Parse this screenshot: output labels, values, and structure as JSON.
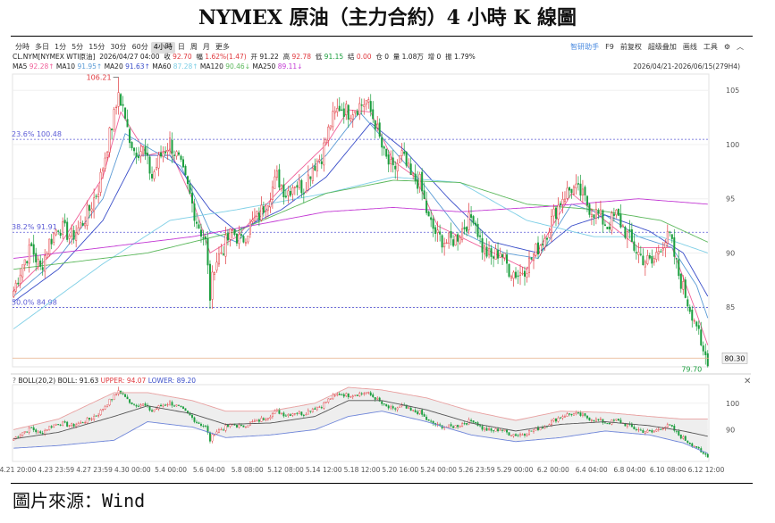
{
  "title": "NYMEX 原油（主力合約）4 小時 K 線圖",
  "source": "圖片來源：Wind",
  "toolbar": {
    "tabs": [
      "分時",
      "多日",
      "1分",
      "5分",
      "15分",
      "30分",
      "60分",
      "4小時",
      "日",
      "周",
      "月",
      "更多"
    ],
    "active_index": 7,
    "right_link": "智研助手",
    "right_items": [
      "F9",
      "前复权",
      "超级叠加",
      "画线",
      "工具"
    ],
    "gear_icon": "gear-icon",
    "collapse_icon": "chevron-up-icon"
  },
  "ohlc_row": {
    "symbol": "CL.NYM[NYMEX WTI原油]",
    "datetime": "2026/04/27 04:00",
    "close_label": "收",
    "close": "92.70",
    "change_label": "幅",
    "change": "1.62%(1.47)",
    "open_label": "开",
    "open": "91.22",
    "high_label": "高",
    "high": "92.78",
    "low_label": "低",
    "low": "91.15",
    "settle_label": "结",
    "settle": "0.00",
    "oi_label": "仓",
    "oi": "0",
    "volume_label": "量",
    "volume": "1.08万",
    "oi_change_label": "增",
    "oi_change": "0",
    "amplitude_label": "振",
    "amplitude": "1.79%"
  },
  "ma_row": [
    {
      "label": "MA5",
      "value": "92.28↑",
      "color": "#f0609a"
    },
    {
      "label": "MA10",
      "value": "91.95↑",
      "color": "#5b9bd5"
    },
    {
      "label": "MA20",
      "value": "91.63↑",
      "color": "#3a4ec9"
    },
    {
      "label": "MA60",
      "value": "87.28↑",
      "color": "#7ecfe6"
    },
    {
      "label": "MA120",
      "value": "90.46↓",
      "color": "#5cb85c"
    },
    {
      "label": "MA250",
      "value": "89.11↓",
      "color": "#c33ad4"
    }
  ],
  "date_range": "2026/04/21-2026/06/15(279H4)",
  "boll": {
    "label": "BOLL(20,2)",
    "mid_label": "BOLL:",
    "mid": "91.63",
    "upper_label": "UPPER:",
    "upper": "94.07",
    "lower_label": "LOWER:",
    "lower": "89.20",
    "help_icon": "question-icon",
    "close_icon": "close-icon"
  },
  "colors": {
    "up": "#e0393e",
    "down": "#1b9e3e",
    "fib": "#5b5bd6",
    "last_price_box": "#f2f2f2"
  },
  "chart_data": [
    {
      "type": "candlestick",
      "title": "",
      "ylim": [
        79.5,
        106.5
      ],
      "y_ticks": [
        85,
        90,
        95,
        100,
        105
      ],
      "x_ticks": [
        "4.21 20:00",
        "4.23 23:59",
        "4.27 23:59",
        "4.30 00:00",
        "5.4 00:00",
        "5.6 04:00",
        "5.8 08:00",
        "5.12 08:00",
        "5.14 12:00",
        "5.18 12:00",
        "5.20 16:00",
        "5.24 00:00",
        "5.26 23:59",
        "5.29 00:00",
        "6.2 00:00",
        "6.4 04:00",
        "6.8 04:00",
        "6.10 08:00",
        "6.12 12:00"
      ],
      "high_marker": {
        "label": "106.21",
        "value": 106.21
      },
      "low_marker": {
        "label": "79.70",
        "value": 79.7
      },
      "last_price": "80.30",
      "fib_levels": [
        {
          "label": "23.6%  100.48",
          "value": 100.48
        },
        {
          "label": "38.2%  91.91",
          "value": 91.91
        },
        {
          "label": "50.0%  84.98",
          "value": 84.98
        }
      ],
      "anchors": [
        [
          0,
          86.5
        ],
        [
          4,
          89
        ],
        [
          8,
          90.5
        ],
        [
          12,
          88.5
        ],
        [
          16,
          91
        ],
        [
          20,
          92.5
        ],
        [
          26,
          91.5
        ],
        [
          30,
          92.5
        ],
        [
          34,
          94
        ],
        [
          38,
          96
        ],
        [
          42,
          100
        ],
        [
          46,
          103.5
        ],
        [
          48,
          105.5
        ],
        [
          50,
          102
        ],
        [
          54,
          99.5
        ],
        [
          58,
          99.5
        ],
        [
          62,
          97
        ],
        [
          66,
          99
        ],
        [
          70,
          100.2
        ],
        [
          74,
          98.5
        ],
        [
          78,
          96
        ],
        [
          82,
          93
        ],
        [
          86,
          91
        ],
        [
          88,
          86
        ],
        [
          90,
          89
        ],
        [
          94,
          90.5
        ],
        [
          98,
          92
        ],
        [
          102,
          91
        ],
        [
          106,
          92.5
        ],
        [
          110,
          93.5
        ],
        [
          114,
          95
        ],
        [
          118,
          97
        ],
        [
          122,
          95.5
        ],
        [
          126,
          96.5
        ],
        [
          130,
          96
        ],
        [
          134,
          98
        ],
        [
          138,
          99
        ],
        [
          142,
          102
        ],
        [
          146,
          103.5
        ],
        [
          150,
          103
        ],
        [
          154,
          103.5
        ],
        [
          158,
          104
        ],
        [
          162,
          102
        ],
        [
          166,
          99
        ],
        [
          170,
          97.5
        ],
        [
          174,
          99
        ],
        [
          178,
          97
        ],
        [
          182,
          96.5
        ],
        [
          186,
          93
        ],
        [
          190,
          91.5
        ],
        [
          194,
          91
        ],
        [
          198,
          91.3
        ],
        [
          202,
          92.5
        ],
        [
          206,
          93.5
        ],
        [
          210,
          90.5
        ],
        [
          214,
          89.5
        ],
        [
          218,
          90.2
        ],
        [
          222,
          88.5
        ],
        [
          226,
          88
        ],
        [
          230,
          88.8
        ],
        [
          234,
          90.2
        ],
        [
          238,
          91.5
        ],
        [
          242,
          93.5
        ],
        [
          246,
          95.2
        ],
        [
          250,
          96
        ],
        [
          254,
          95.5
        ],
        [
          258,
          94.2
        ],
        [
          262,
          93.5
        ],
        [
          266,
          92.5
        ],
        [
          270,
          93.5
        ],
        [
          274,
          92
        ],
        [
          278,
          90.5
        ],
        [
          282,
          89.5
        ],
        [
          286,
          89
        ],
        [
          290,
          90.8
        ],
        [
          294,
          91.5
        ],
        [
          298,
          88
        ],
        [
          302,
          85.5
        ],
        [
          306,
          83.5
        ],
        [
          308,
          81
        ],
        [
          311,
          80.3
        ]
      ],
      "series": [
        {
          "name": "MA5",
          "values": [
            [
              0,
              86.5
            ],
            [
              20,
              90.5
            ],
            [
              40,
              97
            ],
            [
              48,
              103
            ],
            [
              60,
              99
            ],
            [
              70,
              99.5
            ],
            [
              80,
              95
            ],
            [
              88,
              90
            ],
            [
              100,
              91.5
            ],
            [
              120,
              96
            ],
            [
              140,
              100
            ],
            [
              150,
              103.2
            ],
            [
              160,
              103
            ],
            [
              170,
              98.5
            ],
            [
              180,
              97
            ],
            [
              190,
              92.5
            ],
            [
              200,
              91.5
            ],
            [
              215,
              90
            ],
            [
              230,
              88.5
            ],
            [
              250,
              95.5
            ],
            [
              265,
              93
            ],
            [
              280,
              90.5
            ],
            [
              295,
              90.5
            ],
            [
              305,
              85
            ],
            [
              311,
              81.5
            ]
          ]
        },
        {
          "name": "MA10",
          "values": [
            [
              0,
              86
            ],
            [
              20,
              89.5
            ],
            [
              40,
              95
            ],
            [
              50,
              101
            ],
            [
              62,
              99.5
            ],
            [
              75,
              98
            ],
            [
              88,
              92
            ],
            [
              100,
              91
            ],
            [
              120,
              95.5
            ],
            [
              140,
              99
            ],
            [
              155,
              103
            ],
            [
              168,
              100
            ],
            [
              185,
              96
            ],
            [
              200,
              92
            ],
            [
              220,
              90
            ],
            [
              235,
              89.5
            ],
            [
              250,
              94.5
            ],
            [
              265,
              93.5
            ],
            [
              280,
              91.5
            ],
            [
              295,
              90.5
            ],
            [
              306,
              87
            ],
            [
              311,
              84
            ]
          ]
        },
        {
          "name": "MA20",
          "values": [
            [
              0,
              85.5
            ],
            [
              20,
              88.5
            ],
            [
              40,
              93
            ],
            [
              55,
              99
            ],
            [
              70,
              99
            ],
            [
              88,
              94
            ],
            [
              100,
              92
            ],
            [
              120,
              94
            ],
            [
              140,
              97
            ],
            [
              160,
              102
            ],
            [
              175,
              99.5
            ],
            [
              195,
              95
            ],
            [
              215,
              91
            ],
            [
              235,
              90
            ],
            [
              250,
              92.5
            ],
            [
              265,
              93.5
            ],
            [
              285,
              92
            ],
            [
              300,
              90
            ],
            [
              311,
              86
            ]
          ]
        },
        {
          "name": "MA60",
          "values": [
            [
              0,
              83
            ],
            [
              40,
              89
            ],
            [
              70,
              93
            ],
            [
              100,
              94
            ],
            [
              140,
              95.5
            ],
            [
              170,
              97
            ],
            [
              200,
              96.5
            ],
            [
              230,
              93
            ],
            [
              260,
              91.5
            ],
            [
              290,
              91.5
            ],
            [
              311,
              90
            ]
          ]
        },
        {
          "name": "MA120",
          "values": [
            [
              0,
              88.5
            ],
            [
              60,
              90
            ],
            [
              100,
              92
            ],
            [
              140,
              95.5
            ],
            [
              170,
              96.7
            ],
            [
              200,
              96.5
            ],
            [
              230,
              94.5
            ],
            [
              260,
              94
            ],
            [
              290,
              93
            ],
            [
              311,
              91
            ]
          ]
        },
        {
          "name": "MA250",
          "values": [
            [
              0,
              89.5
            ],
            [
              80,
              91.5
            ],
            [
              140,
              93.8
            ],
            [
              170,
              94.2
            ],
            [
              200,
              93.8
            ],
            [
              240,
              94.3
            ],
            [
              280,
              95
            ],
            [
              311,
              94.5
            ]
          ]
        }
      ]
    },
    {
      "type": "line",
      "title": "BOLL(20,2)",
      "ylim": [
        78,
        107
      ],
      "y_ticks": [
        90,
        100
      ],
      "series": [
        {
          "name": "UPPER",
          "values": [
            [
              0,
              90
            ],
            [
              20,
              94
            ],
            [
              45,
              104
            ],
            [
              60,
              104
            ],
            [
              80,
              101
            ],
            [
              95,
              97
            ],
            [
              115,
              97
            ],
            [
              135,
              100
            ],
            [
              150,
              106
            ],
            [
              165,
              105
            ],
            [
              185,
              102
            ],
            [
              205,
              97
            ],
            [
              225,
              93.5
            ],
            [
              245,
              97
            ],
            [
              265,
              96.5
            ],
            [
              285,
              95
            ],
            [
              300,
              94
            ],
            [
              311,
              94
            ]
          ]
        },
        {
          "name": "BOLL",
          "values": [
            [
              0,
              86.5
            ],
            [
              20,
              89
            ],
            [
              45,
              95
            ],
            [
              60,
              99
            ],
            [
              80,
              96
            ],
            [
              95,
              92
            ],
            [
              115,
              92.5
            ],
            [
              135,
              95
            ],
            [
              150,
              101
            ],
            [
              165,
              101
            ],
            [
              185,
              97.5
            ],
            [
              205,
              92.5
            ],
            [
              225,
              89.5
            ],
            [
              245,
              92
            ],
            [
              265,
              93
            ],
            [
              285,
              91.5
            ],
            [
              300,
              89.5
            ],
            [
              311,
              87.5
            ]
          ]
        },
        {
          "name": "LOWER",
          "values": [
            [
              0,
              83
            ],
            [
              20,
              84
            ],
            [
              45,
              86
            ],
            [
              60,
              93
            ],
            [
              80,
              91
            ],
            [
              95,
              87
            ],
            [
              115,
              88
            ],
            [
              135,
              90
            ],
            [
              150,
              95
            ],
            [
              165,
              97
            ],
            [
              185,
              93
            ],
            [
              205,
              88
            ],
            [
              225,
              85.5
            ],
            [
              245,
              87
            ],
            [
              265,
              89.5
            ],
            [
              285,
              88
            ],
            [
              300,
              85
            ],
            [
              311,
              81
            ]
          ]
        }
      ]
    }
  ]
}
